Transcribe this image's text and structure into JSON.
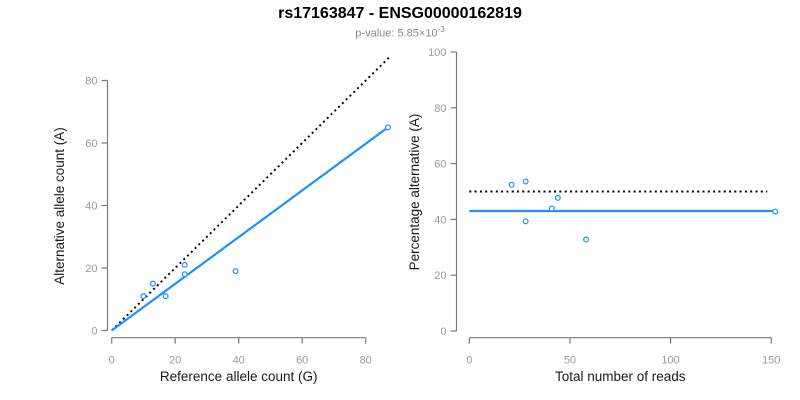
{
  "header": {
    "title": "rs17163847 - ENSG00000162819",
    "pvalue_prefix": "p-value: 5.85×10",
    "pvalue_exponent": "-3"
  },
  "colors": {
    "blue": "#1E90FF",
    "dotted_line": "#000000",
    "axis": "#7a7a7a",
    "tick_label": "#999999",
    "axis_title": "#1a1a1a",
    "subtitle": "#8a8a8a",
    "point_fill": "#ffffff"
  },
  "chart_data": [
    {
      "name": "allele-counts",
      "type": "scatter",
      "xlabel": "Reference allele count (G)",
      "ylabel": "Alternative allele count (A)",
      "xlim": [
        0,
        88
      ],
      "ylim": [
        0,
        88
      ],
      "xticks": [
        0,
        20,
        40,
        60,
        80
      ],
      "yticks": [
        0,
        20,
        40,
        60,
        80
      ],
      "grid": false,
      "points": [
        [
          10,
          11
        ],
        [
          13,
          15
        ],
        [
          17,
          11
        ],
        [
          23,
          18
        ],
        [
          23,
          21
        ],
        [
          39,
          19
        ],
        [
          87,
          65
        ]
      ],
      "lines": [
        {
          "name": "identity-line",
          "style": "dotted",
          "color_key": "dotted_line",
          "from": [
            0,
            0
          ],
          "to": [
            88,
            88
          ]
        },
        {
          "name": "fit-line",
          "style": "solid",
          "color_key": "blue",
          "from": [
            0,
            0
          ],
          "to": [
            87,
            65
          ]
        }
      ]
    },
    {
      "name": "percentage-vs-reads",
      "type": "scatter",
      "xlabel": "Total number of reads",
      "ylabel": "Percentage alternative (A)",
      "xlim": [
        0,
        152
      ],
      "ylim": [
        0,
        100
      ],
      "xticks": [
        0,
        50,
        100,
        150
      ],
      "yticks": [
        0,
        20,
        40,
        60,
        80,
        100
      ],
      "grid": false,
      "points": [
        [
          21,
          52.4
        ],
        [
          28,
          53.6
        ],
        [
          28,
          39.3
        ],
        [
          41,
          43.9
        ],
        [
          44,
          47.7
        ],
        [
          58,
          32.8
        ],
        [
          152,
          42.8
        ]
      ],
      "lines": [
        {
          "name": "expected-50pct-line",
          "style": "dotted",
          "color_key": "dotted_line",
          "from": [
            0,
            50
          ],
          "to": [
            148,
            50
          ]
        },
        {
          "name": "mean-pct-line",
          "style": "solid",
          "color_key": "blue",
          "from": [
            0,
            43
          ],
          "to": [
            152,
            43
          ]
        }
      ]
    }
  ]
}
